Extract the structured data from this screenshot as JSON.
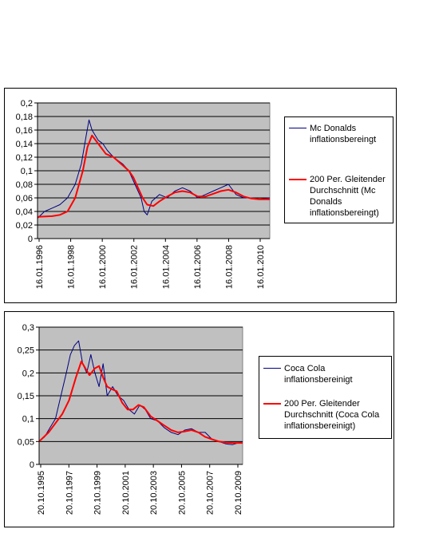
{
  "charts": [
    {
      "chart_data": {
        "type": "line",
        "ylim": [
          0,
          0.2
        ],
        "yticks": [
          "0",
          "0,02",
          "0,04",
          "0,06",
          "0,08",
          "0,1",
          "0,12",
          "0,14",
          "0,16",
          "0,18",
          "0,2"
        ],
        "xticks": [
          "16.01.1996",
          "16.01.1998",
          "16.01.2000",
          "16.01.2002",
          "16.01.2004",
          "16.01.2006",
          "16.01.2008",
          "16.01.2010"
        ],
        "xlim": [
          1996.04,
          2011.2
        ],
        "grid": true,
        "legend_position": "right",
        "series": [
          {
            "name": "Mc Donalds inflationsbereingt",
            "color": "#000080",
            "x": [
              1996.04,
              1996.5,
              1997.0,
              1997.5,
              1998.0,
              1998.5,
              1998.9,
              1999.2,
              1999.4,
              1999.6,
              2000.0,
              2000.3,
              2000.6,
              2001.0,
              2001.3,
              2001.6,
              2002.0,
              2002.4,
              2002.8,
              2003.0,
              2003.2,
              2003.5,
              2004.0,
              2004.5,
              2005.0,
              2005.5,
              2006.0,
              2006.5,
              2007.0,
              2007.5,
              2008.0,
              2008.5,
              2009.0,
              2009.5,
              2010.0,
              2010.5,
              2011.2
            ],
            "values": [
              0.03,
              0.04,
              0.045,
              0.05,
              0.06,
              0.08,
              0.11,
              0.15,
              0.175,
              0.16,
              0.145,
              0.14,
              0.13,
              0.12,
              0.115,
              0.11,
              0.1,
              0.08,
              0.06,
              0.04,
              0.035,
              0.055,
              0.065,
              0.06,
              0.07,
              0.075,
              0.07,
              0.06,
              0.065,
              0.07,
              0.075,
              0.08,
              0.065,
              0.06,
              0.06,
              0.058,
              0.06
            ]
          },
          {
            "name": "200 Per. Gleitender Durchschnitt (Mc Donalds inflationsbereingt)",
            "color": "#ff0000",
            "x": [
              1996.04,
              1997.0,
              1997.5,
              1998.0,
              1998.5,
              1999.0,
              1999.3,
              1999.6,
              2000.0,
              2000.5,
              2001.0,
              2001.5,
              2002.0,
              2002.3,
              2002.6,
              2002.9,
              2003.2,
              2003.6,
              2004.0,
              2004.5,
              2005.0,
              2005.5,
              2006.0,
              2006.5,
              2007.0,
              2007.5,
              2008.0,
              2008.5,
              2009.0,
              2009.5,
              2010.0,
              2010.5,
              2011.2
            ],
            "values": [
              0.032,
              0.033,
              0.035,
              0.04,
              0.06,
              0.1,
              0.135,
              0.152,
              0.14,
              0.125,
              0.12,
              0.11,
              0.1,
              0.09,
              0.075,
              0.06,
              0.05,
              0.048,
              0.055,
              0.062,
              0.068,
              0.07,
              0.068,
              0.062,
              0.062,
              0.066,
              0.07,
              0.072,
              0.068,
              0.062,
              0.059,
              0.058,
              0.058
            ]
          }
        ]
      },
      "legend": [
        {
          "label": "Mc Donalds inflationsbereingt",
          "color": "#000080"
        },
        {
          "label": "200 Per. Gleitender Durchschnitt (Mc Donalds inflationsbereingt)",
          "color": "#ff0000"
        }
      ]
    },
    {
      "chart_data": {
        "type": "line",
        "ylim": [
          0,
          0.3
        ],
        "yticks": [
          "0",
          "0,05",
          "0,1",
          "0,15",
          "0,2",
          "0,25",
          "0,3"
        ],
        "xticks": [
          "20.10.1995",
          "20.10.1997",
          "20.10.1999",
          "20.10.2001",
          "20.10.2003",
          "20.10.2005",
          "20.10.2007",
          "20.10.2009"
        ],
        "xlim": [
          1995.8,
          2010.75
        ],
        "grid": true,
        "legend_position": "right",
        "series": [
          {
            "name": "Coca Cola inflationsbereinigt",
            "color": "#000080",
            "x": [
              1995.8,
              1996.2,
              1996.6,
              1997.0,
              1997.4,
              1997.8,
              1998.1,
              1998.4,
              1998.7,
              1999.0,
              1999.3,
              1999.6,
              1999.9,
              2000.2,
              2000.5,
              2000.8,
              2001.2,
              2001.6,
              2002.0,
              2002.4,
              2002.8,
              2003.2,
              2003.6,
              2004.0,
              2004.5,
              2005.0,
              2005.5,
              2006.0,
              2006.5,
              2007.0,
              2007.5,
              2008.0,
              2008.5,
              2009.0,
              2009.5,
              2010.0,
              2010.75
            ],
            "values": [
              0.05,
              0.06,
              0.08,
              0.1,
              0.15,
              0.2,
              0.24,
              0.26,
              0.27,
              0.22,
              0.2,
              0.24,
              0.2,
              0.17,
              0.22,
              0.15,
              0.17,
              0.15,
              0.14,
              0.12,
              0.11,
              0.13,
              0.12,
              0.1,
              0.095,
              0.08,
              0.07,
              0.065,
              0.075,
              0.078,
              0.07,
              0.07,
              0.055,
              0.05,
              0.045,
              0.043,
              0.05
            ]
          },
          {
            "name": "200 Per. Gleitender Durchschnitt (Coca Cola inflationsbereinigt)",
            "color": "#ff0000",
            "x": [
              1995.8,
              1996.5,
              1997.0,
              1997.5,
              1998.0,
              1998.5,
              1998.9,
              1999.2,
              1999.5,
              1999.9,
              2000.2,
              2000.5,
              2000.8,
              2001.1,
              2001.5,
              2001.9,
              2002.3,
              2002.7,
              2003.1,
              2003.5,
              2004.0,
              2004.5,
              2005.0,
              2005.5,
              2006.0,
              2006.5,
              2007.0,
              2007.5,
              2008.0,
              2008.5,
              2009.0,
              2009.5,
              2010.0,
              2010.75
            ],
            "values": [
              0.05,
              0.07,
              0.09,
              0.11,
              0.14,
              0.19,
              0.225,
              0.21,
              0.195,
              0.21,
              0.215,
              0.19,
              0.17,
              0.165,
              0.16,
              0.135,
              0.12,
              0.12,
              0.13,
              0.125,
              0.105,
              0.095,
              0.085,
              0.075,
              0.07,
              0.072,
              0.075,
              0.07,
              0.06,
              0.055,
              0.05,
              0.048,
              0.047,
              0.047
            ]
          }
        ]
      },
      "legend": [
        {
          "label": "Coca Cola inflationsbereinigt",
          "color": "#000080"
        },
        {
          "label": "200 Per. Gleitender Durchschnitt (Coca Cola inflationsbereinigt)",
          "color": "#ff0000"
        }
      ]
    }
  ]
}
